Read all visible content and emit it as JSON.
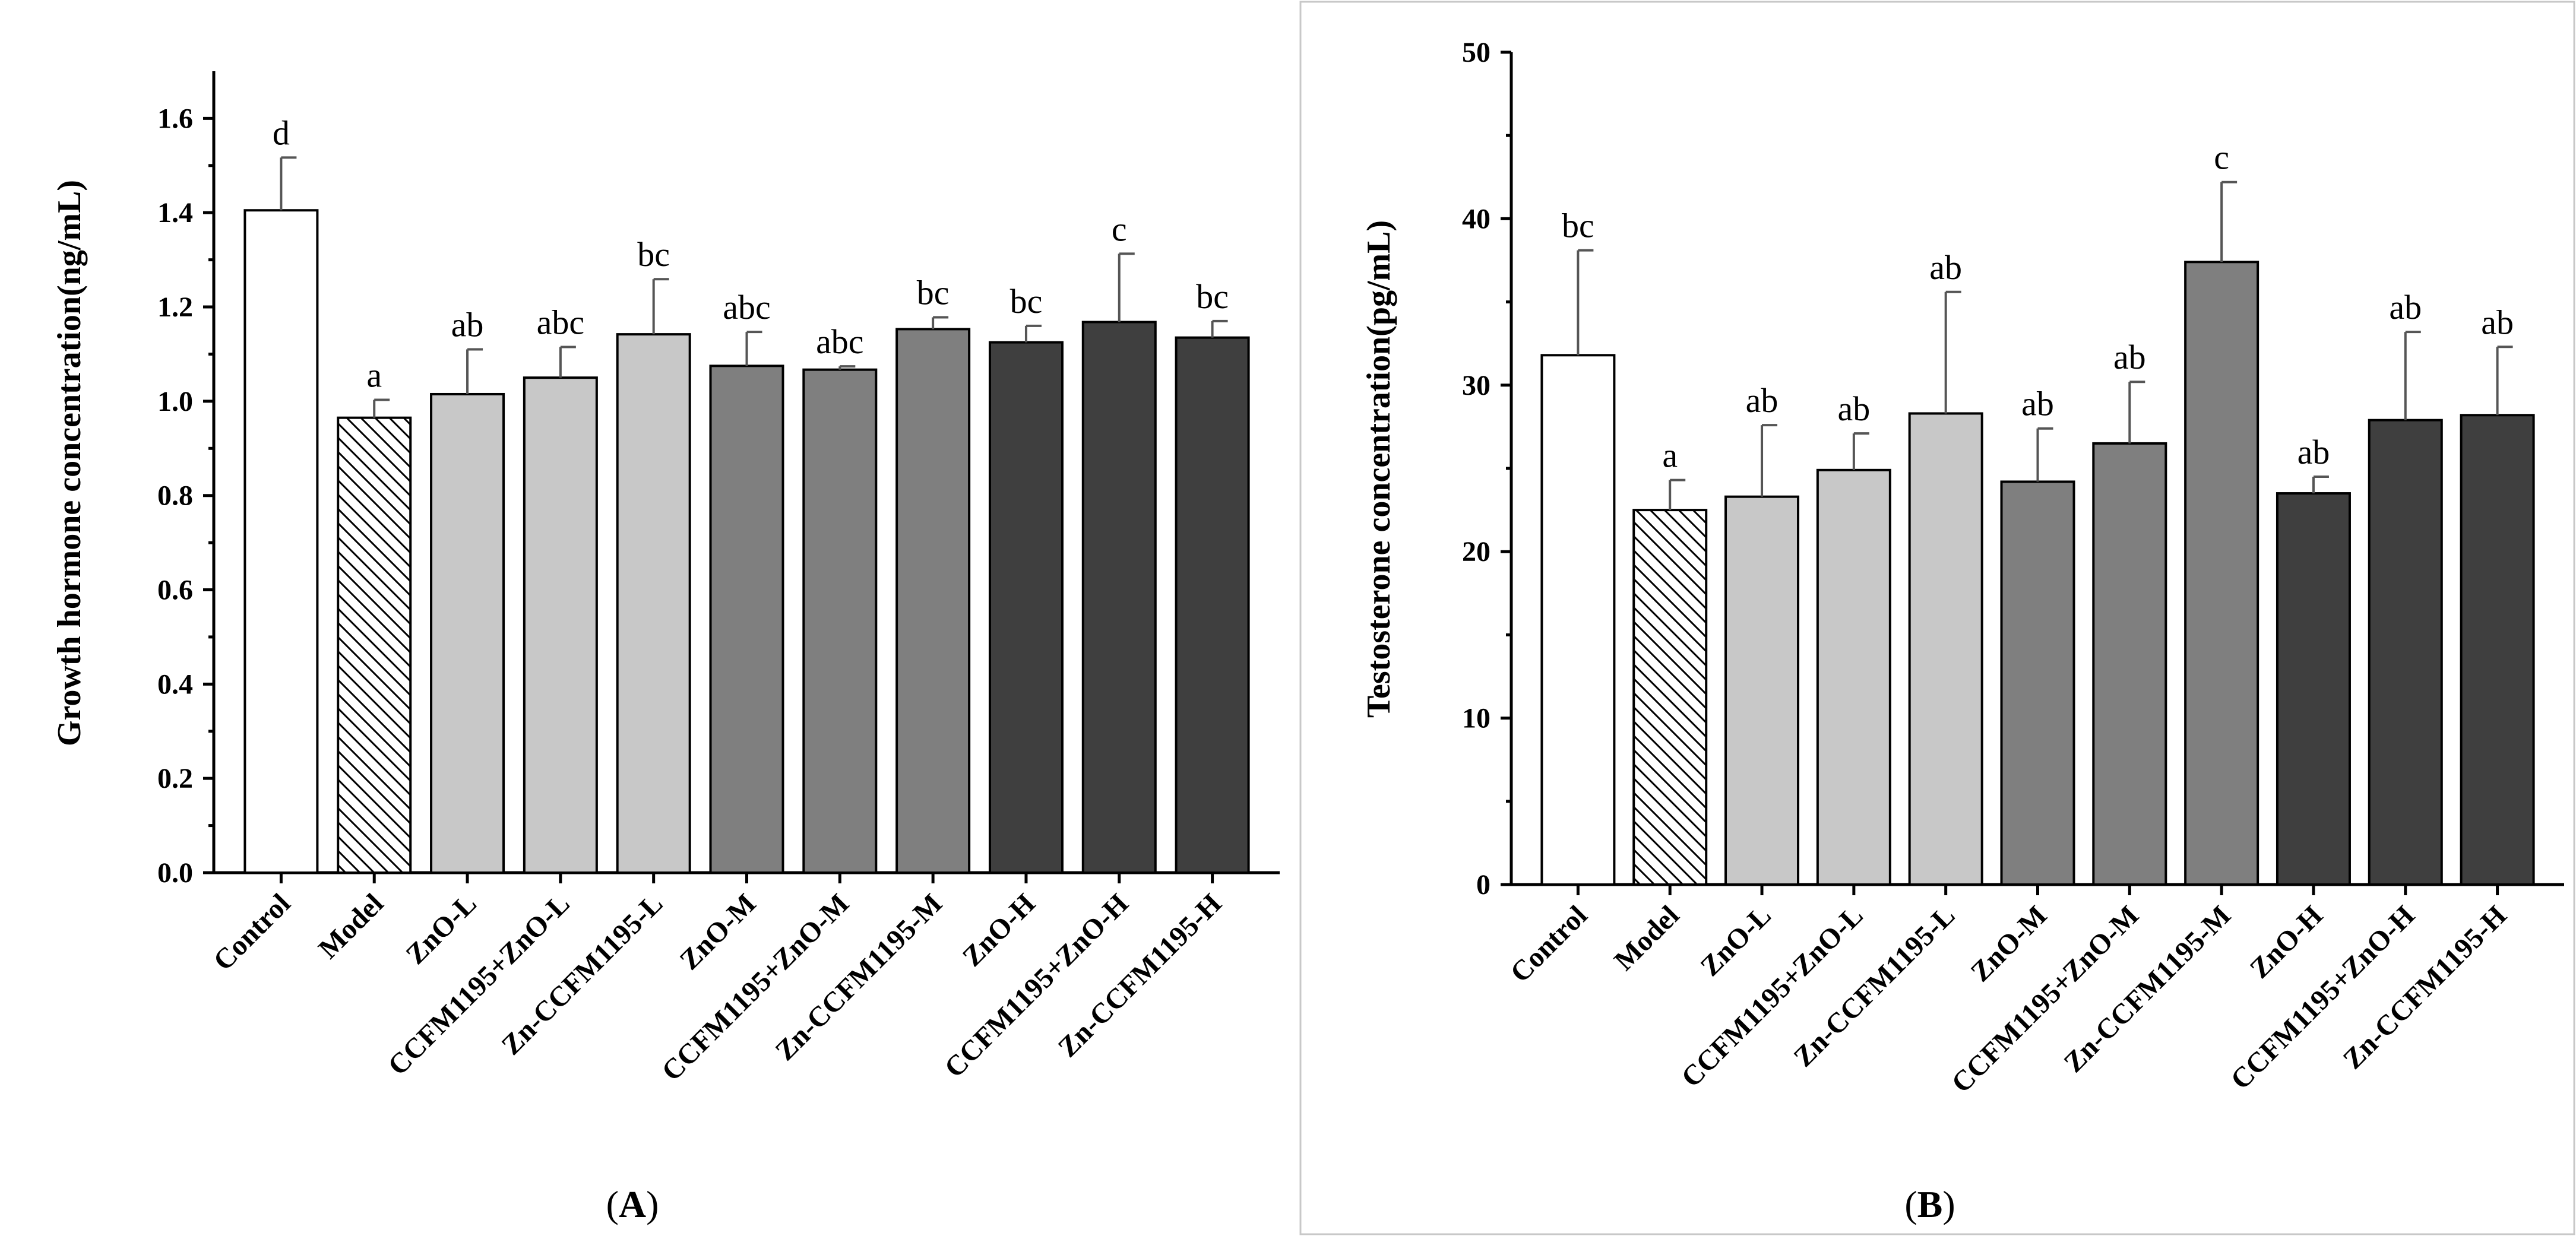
{
  "chart_data": [
    {
      "type": "bar",
      "panel": "A",
      "panel_label": "A",
      "title": "",
      "xlabel": "",
      "ylabel": "Growth hormone concentration(ng/mL)",
      "ylim": [
        0.0,
        1.7
      ],
      "yticks": [
        0.0,
        0.2,
        0.4,
        0.6,
        0.8,
        1.0,
        1.2,
        1.4,
        1.6
      ],
      "ytick_labels": [
        "0.0",
        "0.2",
        "0.4",
        "0.6",
        "0.8",
        "1.0",
        "1.2",
        "1.4",
        "1.6"
      ],
      "categories": [
        "Control",
        "Model",
        "ZnO-L",
        "CCFM1195+ZnO-L",
        "Zn-CCFM1195-L",
        "ZnO-M",
        "CCFM1195+ZnO-M",
        "Zn-CCFM1195-M",
        "ZnO-H",
        "CCFM1195+ZnO-H",
        "Zn-CCFM1195-H"
      ],
      "values": [
        1.405,
        0.965,
        1.015,
        1.05,
        1.142,
        1.075,
        1.067,
        1.153,
        1.125,
        1.168,
        1.135
      ],
      "errors": [
        0.112,
        0.038,
        0.095,
        0.065,
        0.117,
        0.072,
        0.007,
        0.025,
        0.035,
        0.145,
        0.035
      ],
      "significance": [
        "d",
        "a",
        "ab",
        "abc",
        "bc",
        "abc",
        "abc",
        "bc",
        "bc",
        "c",
        "bc"
      ],
      "fills": [
        "#ffffff",
        "hatch",
        "#c8c8c8",
        "#c8c8c8",
        "#c8c8c8",
        "#7f7f7f",
        "#7f7f7f",
        "#7f7f7f",
        "#3f3f3f",
        "#3f3f3f",
        "#3f3f3f"
      ]
    },
    {
      "type": "bar",
      "panel": "B",
      "panel_label": "B",
      "title": "",
      "xlabel": "",
      "ylabel": "Testosterone concentration(pg/mL)",
      "ylim": [
        0,
        50
      ],
      "yticks": [
        0,
        10,
        20,
        30,
        40,
        50
      ],
      "ytick_labels": [
        "0",
        "10",
        "20",
        "30",
        "40",
        "50"
      ],
      "categories": [
        "Control",
        "Model",
        "ZnO-L",
        "CCFM1195+ZnO-L",
        "Zn-CCFM1195-L",
        "ZnO-M",
        "CCFM1195+ZnO-M",
        "Zn-CCFM1195-M",
        "ZnO-H",
        "CCFM1195+ZnO-H",
        "Zn-CCFM1195-H"
      ],
      "values": [
        31.8,
        22.5,
        23.3,
        24.9,
        28.3,
        24.2,
        26.5,
        37.4,
        23.5,
        27.9,
        28.2
      ],
      "errors": [
        6.3,
        1.8,
        4.3,
        2.2,
        7.3,
        3.2,
        3.7,
        4.8,
        1.0,
        5.3,
        4.1
      ],
      "significance": [
        "bc",
        "a",
        "ab",
        "ab",
        "ab",
        "ab",
        "ab",
        "c",
        "ab",
        "ab",
        "ab"
      ],
      "fills": [
        "#ffffff",
        "hatch",
        "#c8c8c8",
        "#c8c8c8",
        "#c8c8c8",
        "#7f7f7f",
        "#7f7f7f",
        "#7f7f7f",
        "#3f3f3f",
        "#3f3f3f",
        "#3f3f3f"
      ]
    }
  ]
}
